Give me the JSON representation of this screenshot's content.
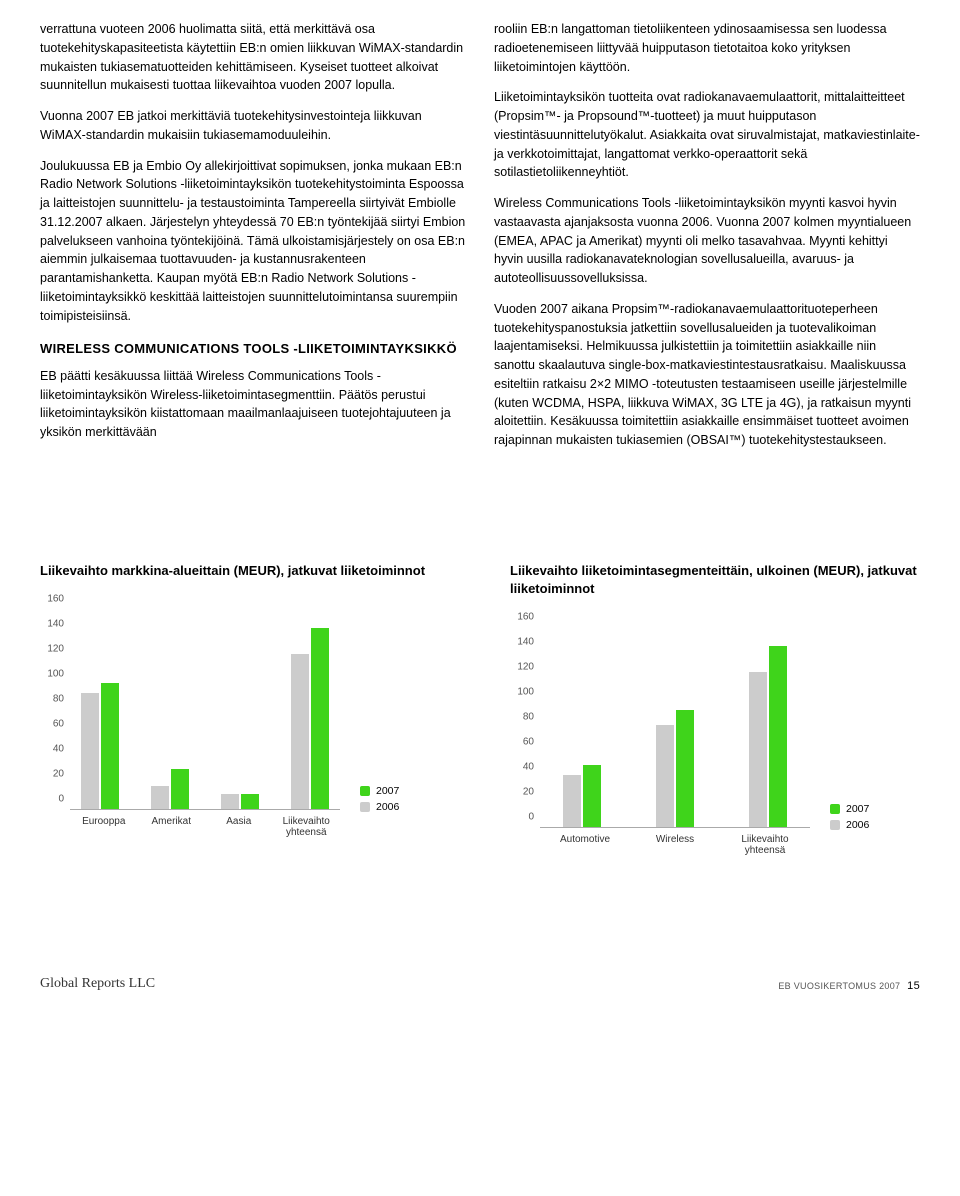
{
  "body_text": {
    "col1_p1": "verrattuna vuoteen 2006 huolimatta siitä, että merkittävä osa tuotekehityskapasiteetista käytettiin EB:n omien liikkuvan WiMAX-standardin mukaisten tukiasematuotteiden kehittämiseen. Kyseiset tuotteet alkoivat suunnitellun mukaisesti tuottaa liikevaihtoa vuoden 2007 lopulla.",
    "col1_p2": "Vuonna 2007 EB jatkoi merkittäviä tuotekehitysinvestointeja liikkuvan WiMAX-standardin mukaisiin tukiasemamoduuleihin.",
    "col1_p3": "Joulukuussa EB ja Embio Oy allekirjoittivat sopimuksen, jonka mukaan EB:n Radio Network Solutions -liiketoimintayksikön tuotekehitystoiminta Espoossa ja laitteistojen suunnittelu- ja testaustoiminta Tampereella siirtyivät Embiolle 31.12.2007 alkaen. Järjestelyn yhteydessä 70 EB:n työntekijää siirtyi Embion palvelukseen vanhoina työntekijöinä. Tämä ulkoistamisjärjestely on osa EB:n aiemmin julkaisemaa tuottavuuden- ja kustannusrakenteen parantamishanketta. Kaupan myötä EB:n Radio Network Solutions -liiketoimintayksikkö keskittää laitteistojen suunnittelutoimintansa suurempiin toimipisteisiinsä.",
    "col1_h1": "WIRELESS COMMUNICATIONS TOOLS -LIIKETOIMINTAYKSIKKÖ",
    "col1_p4": "EB päätti kesäkuussa liittää Wireless Communications Tools -liiketoimintayksikön Wireless-liiketoimintasegmenttiin. Päätös perustui liiketoimintayksikön kiistattomaan maailmanlaajuiseen tuotejohtajuuteen ja yksikön merkittävään",
    "col2_p1": "rooliin EB:n langattoman tietoliikenteen ydinosaamisessa sen luodessa radioetenemiseen liittyvää huipputason tietotaitoa koko yrityksen liiketoimintojen käyttöön.",
    "col2_p2": "Liiketoimintayksikön tuotteita ovat radiokanavaemulaattorit, mittalaitteitteet (Propsim™- ja Propsound™-tuotteet) ja muut huipputason viestintäsuunnittelutyökalut. Asiakkaita ovat siruvalmistajat, matkaviestinlaite- ja verkkotoimittajat, langattomat verkko-operaattorit sekä sotilastietoliikenneyhtiöt.",
    "col2_p3": "Wireless Communications Tools -liiketoimintayksikön myynti kasvoi hyvin vastaavasta ajanjaksosta vuonna 2006. Vuonna 2007 kolmen myyntialueen (EMEA, APAC ja Amerikat) myynti oli melko tasavahvaa. Myynti kehittyi hyvin uusilla radiokanavateknologian sovellusalueilla, avaruus- ja autoteollisuussovelluksissa.",
    "col2_p4": "Vuoden 2007 aikana Propsim™-radiokanavaemulaattorituoteperheen tuotekehityspanostuksia jatkettiin sovellusalueiden ja tuotevalikoiman laajentamiseksi. Helmikuussa julkistettiin ja toimitettiin asiakkaille niin sanottu skaalautuva single-box-matkaviestintestausratkaisu. Maaliskuussa esiteltiin ratkaisu 2×2 MIMO -toteutusten testaamiseen useille järjestelmille (kuten WCDMA, HSPA, liikkuva WiMAX, 3G LTE ja 4G), ja ratkaisun myynti aloitettiin. Kesäkuussa toimitettiin asiakkaille ensimmäiset tuotteet avoimen rajapinnan mukaisten tukiasemien (OBSAI™) tuotekehitystestaukseen."
  },
  "charts": {
    "colors": {
      "c2006": "#cccccc",
      "c2007": "#3fd41b",
      "axis_text": "#555555"
    },
    "ylim": [
      0,
      160
    ],
    "ytick_step": 20,
    "chart1": {
      "title": "Liikevaihto markkina-alueittain (MEUR), jatkuvat liiketoiminnot",
      "categories": [
        "Eurooppa",
        "Amerikat",
        "Aasia",
        "Liikevaihto yhteensä"
      ],
      "values_2006": [
        93,
        18,
        12,
        124
      ],
      "values_2007": [
        101,
        32,
        12,
        145
      ]
    },
    "chart2": {
      "title": "Liikevaihto liiketoimintasegmenteittäin, ulkoinen (MEUR), jatkuvat liiketoiminnot",
      "categories": [
        "Automotive",
        "Wireless",
        "Liikevaihto yhteensä"
      ],
      "values_2006": [
        42,
        82,
        124
      ],
      "values_2007": [
        50,
        94,
        145
      ]
    },
    "legend": {
      "l2007": "2007",
      "l2006": "2006"
    }
  },
  "footer": {
    "left": "Global Reports LLC",
    "right": "EB VUOSIKERTOMUS 2007",
    "page": "15"
  }
}
